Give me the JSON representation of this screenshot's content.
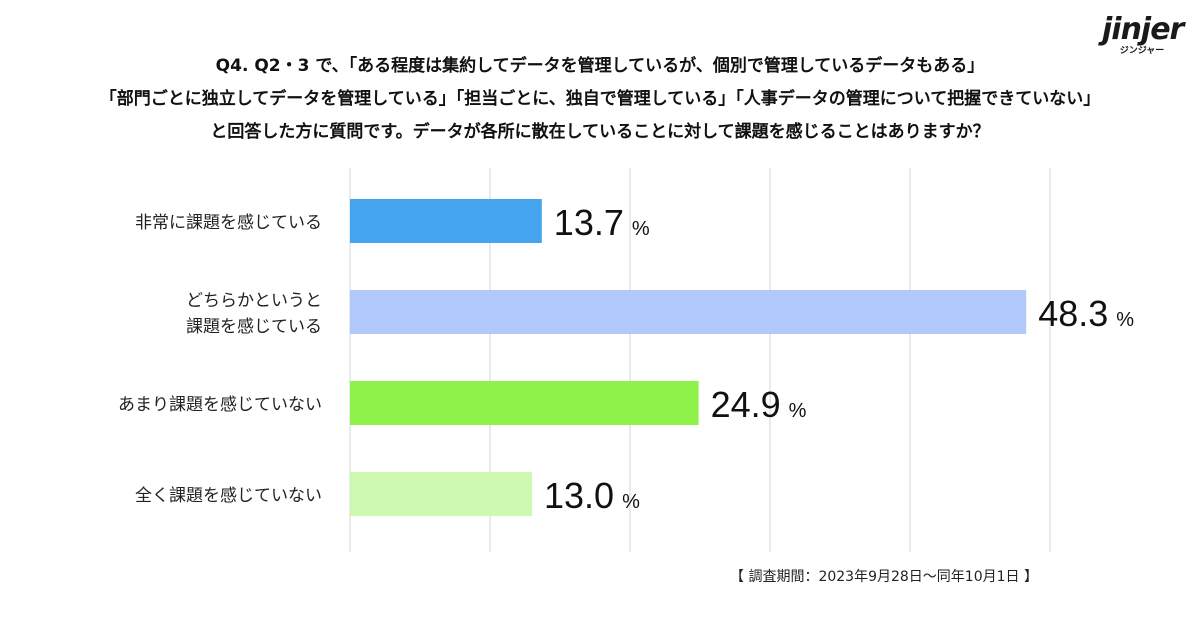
{
  "logo": {
    "text": "jinjer",
    "subtext": "ジンジャー"
  },
  "title_lines": [
    "Q4. Q2・3 で、「ある程度は集約してデータを管理しているが、個別で管理しているデータもある」",
    "「部門ごとに独立してデータを管理している」「担当ごとに、独自で管理している」「人事データの管理について把握できていない」",
    "と回答した方に質問です。データが各所に散在していることに対して課題を感じることはありますか？"
  ],
  "chart_data": {
    "type": "bar",
    "orientation": "horizontal",
    "unit": "%",
    "xlim": [
      0,
      50
    ],
    "grid": true,
    "categories": [
      [
        "非常に課題を感じている"
      ],
      [
        "どちらかというと",
        "課題を感じている"
      ],
      [
        "あまり課題を感じていない"
      ],
      [
        "全く課題を感じていない"
      ]
    ],
    "values": [
      13.7,
      48.3,
      24.9,
      13.0
    ],
    "labels": [
      "13.7",
      "48.3",
      "24.9",
      "13.0"
    ],
    "colors": [
      "#44a4f0",
      "#b0c8fb",
      "#8ef24a",
      "#cdf9b0"
    ]
  },
  "footnote": "【 調査期間：2023年9月28日〜同年10月1日 】"
}
